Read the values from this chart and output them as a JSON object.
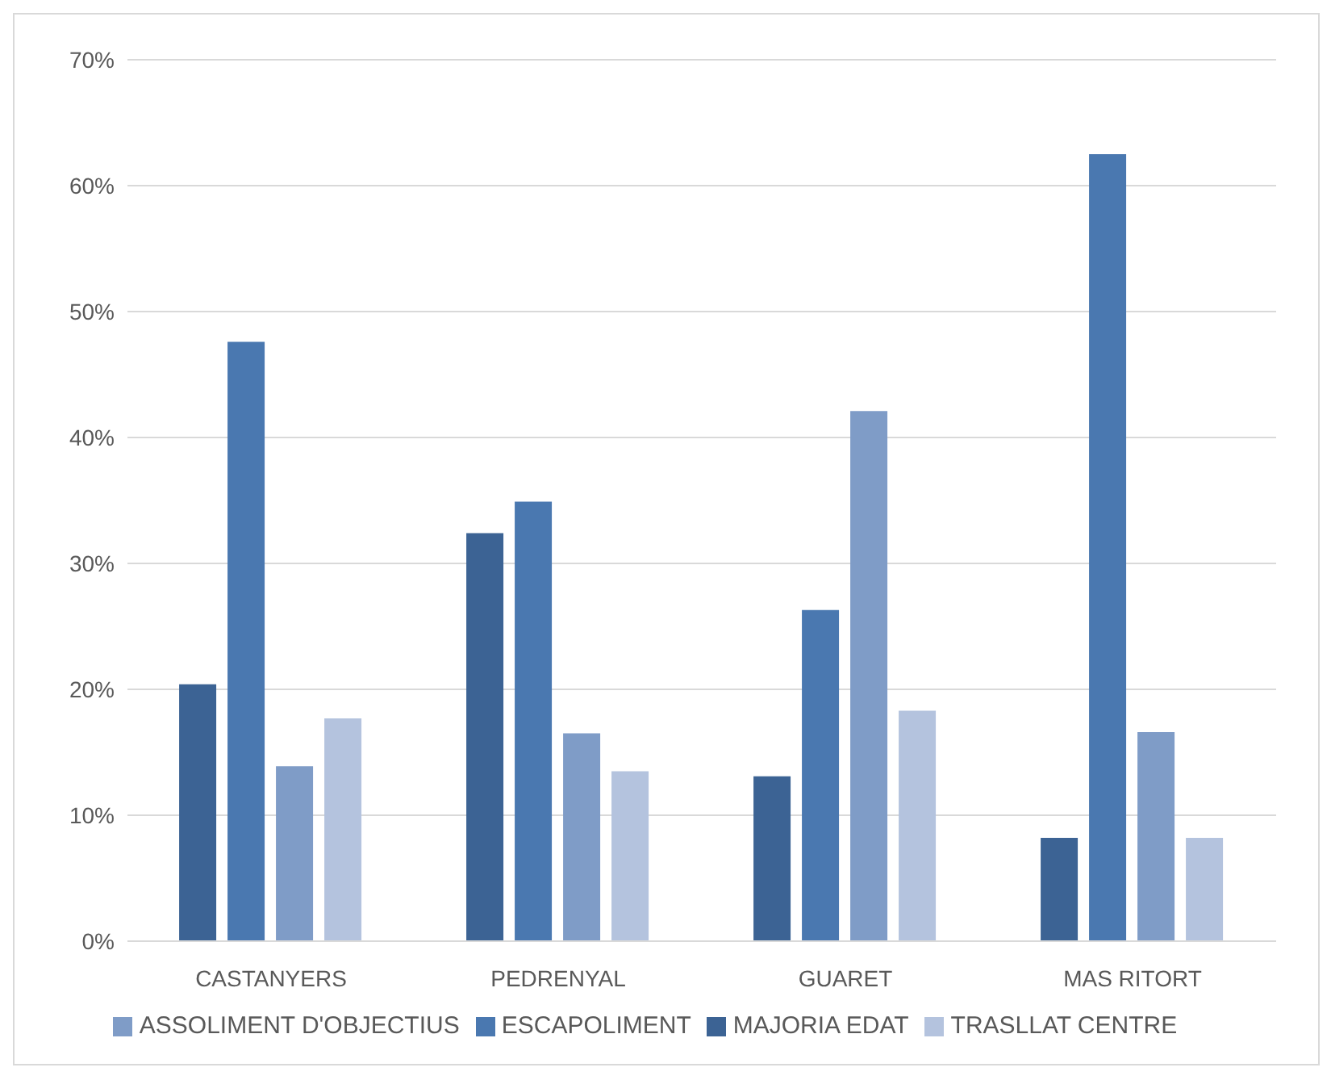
{
  "chart_data": {
    "type": "bar",
    "categories": [
      "CASTANYERS",
      "PEDRENYAL",
      "GUARET",
      "MAS RITORT"
    ],
    "series": [
      {
        "name": "MAJORIA EDAT",
        "color": "#3c6394",
        "values": [
          20.4,
          32.4,
          13.1,
          8.2
        ]
      },
      {
        "name": "ESCAPOLIMENT",
        "color": "#4a78b0",
        "values": [
          47.6,
          34.9,
          26.3,
          62.5
        ]
      },
      {
        "name": "ASSOLIMENT D'OBJECTIUS",
        "color": "#7f9cc7",
        "values": [
          13.9,
          16.5,
          42.1,
          16.6
        ]
      },
      {
        "name": "TRASLLAT CENTRE",
        "color": "#b4c3de",
        "values": [
          17.7,
          13.5,
          18.3,
          8.2
        ]
      }
    ],
    "ylim": [
      0,
      70
    ],
    "yticks": [
      {
        "value": 0,
        "label": "0%"
      },
      {
        "value": 10,
        "label": "10%"
      },
      {
        "value": 20,
        "label": "20%"
      },
      {
        "value": 30,
        "label": "30%"
      },
      {
        "value": 40,
        "label": "40%"
      },
      {
        "value": 50,
        "label": "50%"
      },
      {
        "value": 60,
        "label": "60%"
      },
      {
        "value": 70,
        "label": "70%"
      }
    ],
    "grid": "y",
    "legend": "bottom"
  }
}
